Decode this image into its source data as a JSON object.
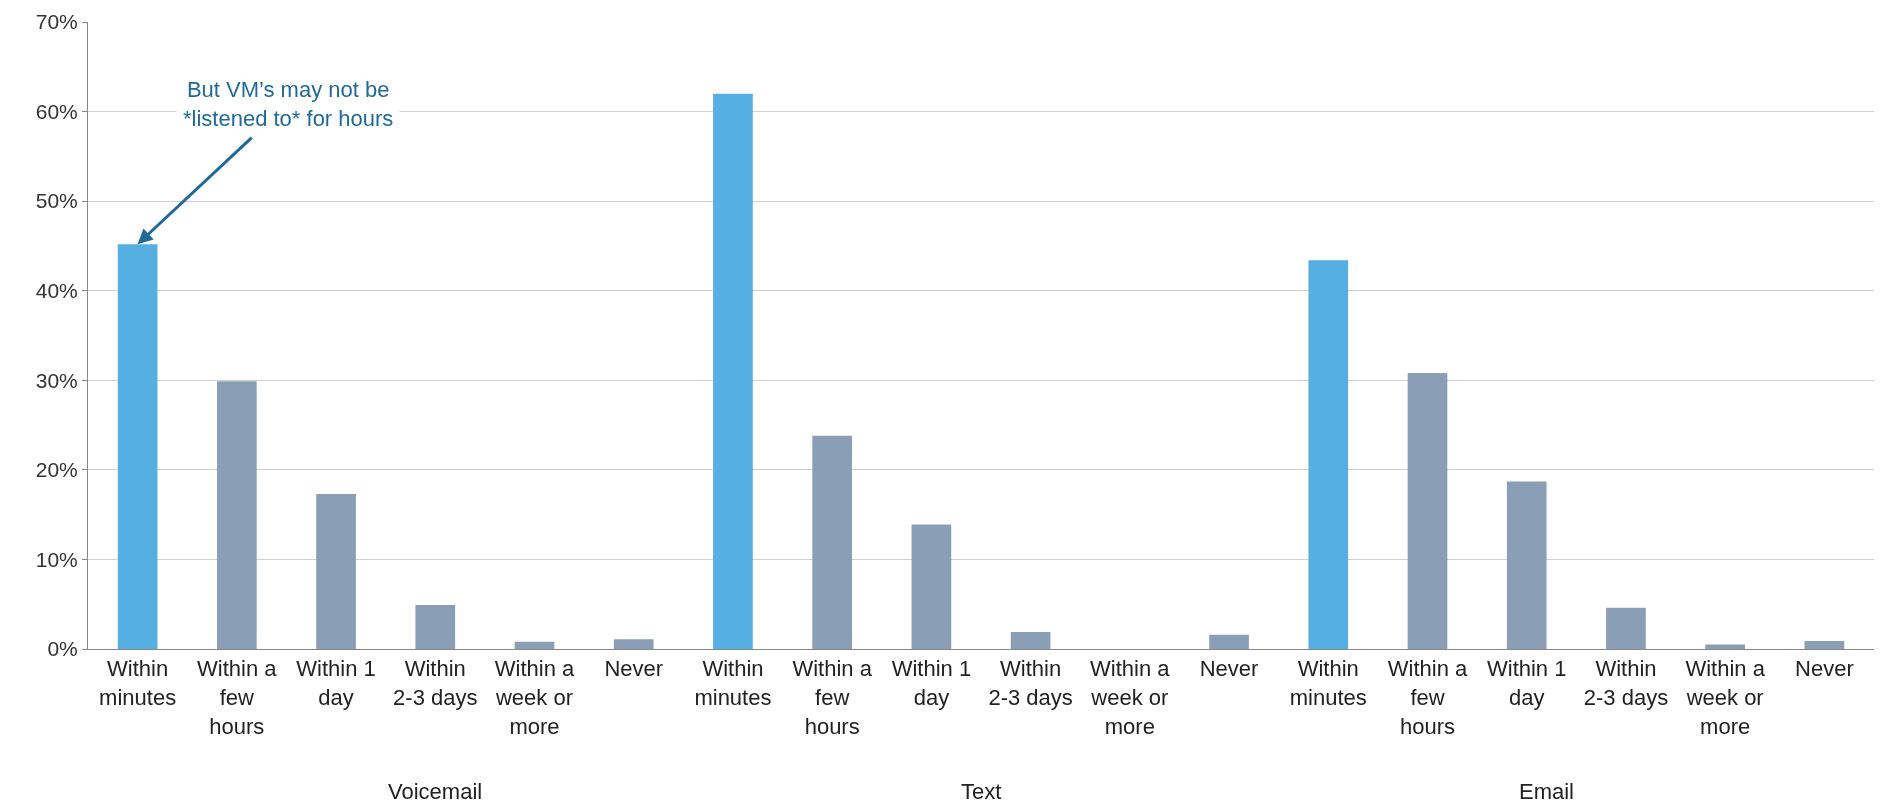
{
  "chart_data": {
    "type": "bar",
    "categories": [
      "Within minutes",
      "Within a few hours",
      "Within 1 day",
      "Within 2-3 days",
      "Within a week or more",
      "Never",
      "Within minutes",
      "Within a few hours",
      "Within 1 day",
      "Within 2-3 days",
      "Within a week or more",
      "Never",
      "Within minutes",
      "Within a few hours",
      "Within 1 day",
      "Within 2-3 days",
      "Within a week or more",
      "Never"
    ],
    "values": [
      45.2,
      29.9,
      17.3,
      4.9,
      0.8,
      1.1,
      62,
      23.8,
      13.9,
      1.9,
      0,
      1.6,
      43.4,
      30.8,
      18.7,
      4.6,
      0.5,
      0.9
    ],
    "colors": [
      "#56afe2",
      "#8a9fb5",
      "#8a9fb5",
      "#8a9fb5",
      "#8a9fb5",
      "#8a9fb5",
      "#56afe2",
      "#8a9fb5",
      "#8a9fb5",
      "#8a9fb5",
      "#8a9fb5",
      "#8a9fb5",
      "#56afe2",
      "#8a9fb5",
      "#8a9fb5",
      "#8a9fb5",
      "#8a9fb5",
      "#8a9fb5"
    ],
    "ylim": [
      0,
      70
    ],
    "yticks": [
      {
        "value": 0,
        "label": "0%"
      },
      {
        "value": 10,
        "label": "10%"
      },
      {
        "value": 20,
        "label": "20%"
      },
      {
        "value": 30,
        "label": "30%"
      },
      {
        "value": 40,
        "label": "40%"
      },
      {
        "value": 50,
        "label": "50%"
      },
      {
        "value": 60,
        "label": "60%"
      },
      {
        "value": 70,
        "label": "70%"
      }
    ],
    "grid": "y",
    "annotations": [
      {
        "text": "But VM’s may not be *listened to* for hours",
        "x": "Within minutes",
        "y": 45.2
      },
      "Voicemail",
      "Text",
      "Email"
    ]
  }
}
